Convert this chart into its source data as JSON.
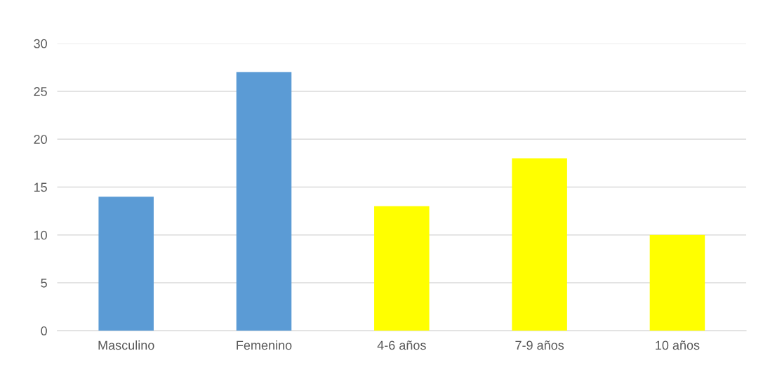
{
  "chart_data": {
    "type": "bar",
    "categories": [
      "Masculino",
      "Femenino",
      "4-6 años",
      "7-9 años",
      "10 años"
    ],
    "values": [
      14,
      27,
      13,
      18,
      10
    ],
    "colors": [
      "#5b9bd5",
      "#5b9bd5",
      "#ffff00",
      "#ffff00",
      "#ffff00"
    ],
    "ylim": [
      0,
      30
    ],
    "yticks": [
      0,
      5,
      10,
      15,
      20,
      25,
      30
    ],
    "grid": "y",
    "legend": false
  }
}
